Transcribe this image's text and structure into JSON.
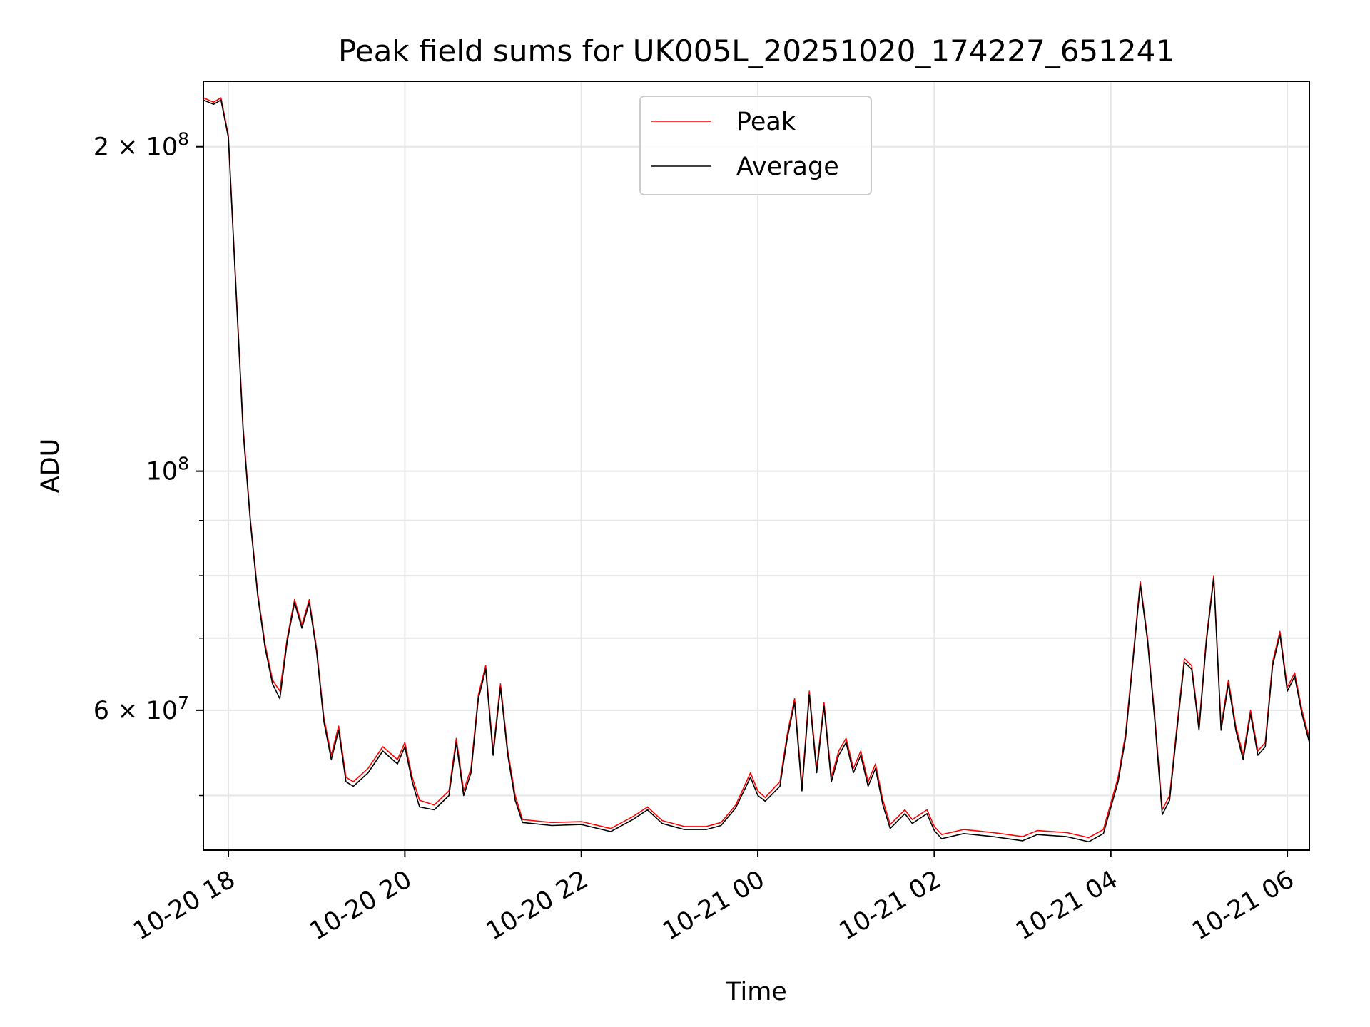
{
  "chart_data": {
    "type": "line",
    "title": "Peak field sums for UK005L_20251020_174227_651241",
    "xlabel": "Time",
    "ylabel": "ADU",
    "y_scale": "log",
    "ylim": [
      44500000,
      230000000
    ],
    "xlim": [
      "2025-10-20 17:43",
      "2025-10-21 06:15"
    ],
    "grid": true,
    "legend_position": "top-center",
    "x_ticks": [
      {
        "t": "2025-10-20 18:00",
        "label": "10-20 18"
      },
      {
        "t": "2025-10-20 20:00",
        "label": "10-20 20"
      },
      {
        "t": "2025-10-20 22:00",
        "label": "10-20 22"
      },
      {
        "t": "2025-10-21 00:00",
        "label": "10-21 00"
      },
      {
        "t": "2025-10-21 02:00",
        "label": "10-21 02"
      },
      {
        "t": "2025-10-21 04:00",
        "label": "10-21 04"
      },
      {
        "t": "2025-10-21 06:00",
        "label": "10-21 06"
      }
    ],
    "y_major_ticks": [
      {
        "v": 200000000,
        "base": "2 × 10",
        "exp": "8"
      },
      {
        "v": 100000000,
        "base": "10",
        "exp": "8"
      },
      {
        "v": 60000000,
        "base": "6 × 10",
        "exp": "7"
      }
    ],
    "y_minor_gridlines": [
      50000000,
      70000000,
      80000000,
      90000000
    ],
    "series": [
      {
        "name": "Peak",
        "color": "#ff0000",
        "points": [
          [
            "2025-10-20 17:43",
            222000000
          ],
          [
            "2025-10-20 17:50",
            220000000
          ],
          [
            "2025-10-20 17:55",
            222000000
          ],
          [
            "2025-10-20 18:00",
            205000000
          ],
          [
            "2025-10-20 18:05",
            150000000
          ],
          [
            "2025-10-20 18:10",
            110000000
          ],
          [
            "2025-10-20 18:15",
            90000000
          ],
          [
            "2025-10-20 18:20",
            77000000
          ],
          [
            "2025-10-20 18:25",
            69000000
          ],
          [
            "2025-10-20 18:30",
            64000000
          ],
          [
            "2025-10-20 18:35",
            62500000
          ],
          [
            "2025-10-20 18:40",
            70000000
          ],
          [
            "2025-10-20 18:45",
            76000000
          ],
          [
            "2025-10-20 18:50",
            72000000
          ],
          [
            "2025-10-20 18:55",
            76000000
          ],
          [
            "2025-10-20 19:00",
            68500000
          ],
          [
            "2025-10-20 19:05",
            59000000
          ],
          [
            "2025-10-20 19:10",
            54500000
          ],
          [
            "2025-10-20 19:15",
            58000000
          ],
          [
            "2025-10-20 19:20",
            52000000
          ],
          [
            "2025-10-20 19:25",
            51500000
          ],
          [
            "2025-10-20 19:35",
            53000000
          ],
          [
            "2025-10-20 19:45",
            55500000
          ],
          [
            "2025-10-20 19:55",
            54000000
          ],
          [
            "2025-10-20 20:00",
            56000000
          ],
          [
            "2025-10-20 20:05",
            52000000
          ],
          [
            "2025-10-20 20:10",
            49500000
          ],
          [
            "2025-10-20 20:20",
            49000000
          ],
          [
            "2025-10-20 20:30",
            50500000
          ],
          [
            "2025-10-20 20:35",
            56500000
          ],
          [
            "2025-10-20 20:40",
            50500000
          ],
          [
            "2025-10-20 20:45",
            53000000
          ],
          [
            "2025-10-20 20:50",
            62000000
          ],
          [
            "2025-10-20 20:55",
            66000000
          ],
          [
            "2025-10-20 21:00",
            55000000
          ],
          [
            "2025-10-20 21:05",
            63500000
          ],
          [
            "2025-10-20 21:10",
            55000000
          ],
          [
            "2025-10-20 21:15",
            50000000
          ],
          [
            "2025-10-20 21:20",
            47500000
          ],
          [
            "2025-10-20 21:40",
            47200000
          ],
          [
            "2025-10-20 22:00",
            47300000
          ],
          [
            "2025-10-20 22:20",
            46600000
          ],
          [
            "2025-10-20 22:35",
            47800000
          ],
          [
            "2025-10-20 22:45",
            48800000
          ],
          [
            "2025-10-20 22:55",
            47400000
          ],
          [
            "2025-10-20 23:10",
            46800000
          ],
          [
            "2025-10-20 23:25",
            46800000
          ],
          [
            "2025-10-20 23:35",
            47200000
          ],
          [
            "2025-10-20 23:45",
            49000000
          ],
          [
            "2025-10-20 23:55",
            52500000
          ],
          [
            "2025-10-21 00:00",
            50500000
          ],
          [
            "2025-10-21 00:05",
            49800000
          ],
          [
            "2025-10-21 00:15",
            51500000
          ],
          [
            "2025-10-21 00:20",
            57000000
          ],
          [
            "2025-10-21 00:25",
            61500000
          ],
          [
            "2025-10-21 00:30",
            51000000
          ],
          [
            "2025-10-21 00:35",
            62500000
          ],
          [
            "2025-10-21 00:40",
            53000000
          ],
          [
            "2025-10-21 00:45",
            61000000
          ],
          [
            "2025-10-21 00:50",
            52000000
          ],
          [
            "2025-10-21 00:55",
            55000000
          ],
          [
            "2025-10-21 01:00",
            56500000
          ],
          [
            "2025-10-21 01:05",
            53000000
          ],
          [
            "2025-10-21 01:10",
            55000000
          ],
          [
            "2025-10-21 01:15",
            51500000
          ],
          [
            "2025-10-21 01:20",
            53500000
          ],
          [
            "2025-10-21 01:25",
            49500000
          ],
          [
            "2025-10-21 01:30",
            47000000
          ],
          [
            "2025-10-21 01:40",
            48500000
          ],
          [
            "2025-10-21 01:45",
            47500000
          ],
          [
            "2025-10-21 01:55",
            48500000
          ],
          [
            "2025-10-21 02:00",
            46800000
          ],
          [
            "2025-10-21 02:05",
            46000000
          ],
          [
            "2025-10-21 02:20",
            46500000
          ],
          [
            "2025-10-21 02:40",
            46200000
          ],
          [
            "2025-10-21 03:00",
            45800000
          ],
          [
            "2025-10-21 03:10",
            46400000
          ],
          [
            "2025-10-21 03:30",
            46200000
          ],
          [
            "2025-10-21 03:45",
            45700000
          ],
          [
            "2025-10-21 03:55",
            46500000
          ],
          [
            "2025-10-21 04:05",
            52000000
          ],
          [
            "2025-10-21 04:10",
            57000000
          ],
          [
            "2025-10-21 04:15",
            67000000
          ],
          [
            "2025-10-21 04:20",
            79000000
          ],
          [
            "2025-10-21 04:25",
            70000000
          ],
          [
            "2025-10-21 04:30",
            59000000
          ],
          [
            "2025-10-21 04:35",
            48500000
          ],
          [
            "2025-10-21 04:40",
            50000000
          ],
          [
            "2025-10-21 04:45",
            58000000
          ],
          [
            "2025-10-21 04:50",
            67000000
          ],
          [
            "2025-10-21 04:55",
            66000000
          ],
          [
            "2025-10-21 05:00",
            58000000
          ],
          [
            "2025-10-21 05:05",
            70000000
          ],
          [
            "2025-10-21 05:10",
            80000000
          ],
          [
            "2025-10-21 05:15",
            58000000
          ],
          [
            "2025-10-21 05:20",
            64000000
          ],
          [
            "2025-10-21 05:25",
            58000000
          ],
          [
            "2025-10-21 05:30",
            54500000
          ],
          [
            "2025-10-21 05:35",
            60000000
          ],
          [
            "2025-10-21 05:40",
            55000000
          ],
          [
            "2025-10-21 05:45",
            56000000
          ],
          [
            "2025-10-21 05:50",
            66500000
          ],
          [
            "2025-10-21 05:55",
            71000000
          ],
          [
            "2025-10-21 06:00",
            63000000
          ],
          [
            "2025-10-21 06:05",
            65000000
          ],
          [
            "2025-10-21 06:10",
            60000000
          ],
          [
            "2025-10-21 06:15",
            56500000
          ]
        ]
      },
      {
        "name": "Average",
        "color": "#000000",
        "points": [
          [
            "2025-10-20 17:43",
            221000000
          ],
          [
            "2025-10-20 17:50",
            219000000
          ],
          [
            "2025-10-20 17:55",
            221000000
          ],
          [
            "2025-10-20 18:00",
            204000000
          ],
          [
            "2025-10-20 18:05",
            149000000
          ],
          [
            "2025-10-20 18:10",
            109000000
          ],
          [
            "2025-10-20 18:15",
            89500000
          ],
          [
            "2025-10-20 18:20",
            76500000
          ],
          [
            "2025-10-20 18:25",
            68500000
          ],
          [
            "2025-10-20 18:30",
            63500000
          ],
          [
            "2025-10-20 18:35",
            61500000
          ],
          [
            "2025-10-20 18:40",
            69500000
          ],
          [
            "2025-10-20 18:45",
            75500000
          ],
          [
            "2025-10-20 18:50",
            71500000
          ],
          [
            "2025-10-20 18:55",
            75500000
          ],
          [
            "2025-10-20 19:00",
            68000000
          ],
          [
            "2025-10-20 19:05",
            58500000
          ],
          [
            "2025-10-20 19:10",
            54000000
          ],
          [
            "2025-10-20 19:15",
            57500000
          ],
          [
            "2025-10-20 19:20",
            51500000
          ],
          [
            "2025-10-20 19:25",
            51000000
          ],
          [
            "2025-10-20 19:35",
            52500000
          ],
          [
            "2025-10-20 19:45",
            55000000
          ],
          [
            "2025-10-20 19:55",
            53500000
          ],
          [
            "2025-10-20 20:00",
            55500000
          ],
          [
            "2025-10-20 20:05",
            51500000
          ],
          [
            "2025-10-20 20:10",
            48800000
          ],
          [
            "2025-10-20 20:20",
            48500000
          ],
          [
            "2025-10-20 20:30",
            50000000
          ],
          [
            "2025-10-20 20:35",
            56000000
          ],
          [
            "2025-10-20 20:40",
            50000000
          ],
          [
            "2025-10-20 20:45",
            52500000
          ],
          [
            "2025-10-20 20:50",
            61500000
          ],
          [
            "2025-10-20 20:55",
            65500000
          ],
          [
            "2025-10-20 21:00",
            54500000
          ],
          [
            "2025-10-20 21:05",
            63000000
          ],
          [
            "2025-10-20 21:10",
            54500000
          ],
          [
            "2025-10-20 21:15",
            49500000
          ],
          [
            "2025-10-20 21:20",
            47200000
          ],
          [
            "2025-10-20 21:40",
            46900000
          ],
          [
            "2025-10-20 22:00",
            47000000
          ],
          [
            "2025-10-20 22:20",
            46300000
          ],
          [
            "2025-10-20 22:35",
            47500000
          ],
          [
            "2025-10-20 22:45",
            48500000
          ],
          [
            "2025-10-20 22:55",
            47100000
          ],
          [
            "2025-10-20 23:10",
            46500000
          ],
          [
            "2025-10-20 23:25",
            46500000
          ],
          [
            "2025-10-20 23:35",
            46900000
          ],
          [
            "2025-10-20 23:45",
            48700000
          ],
          [
            "2025-10-20 23:55",
            52000000
          ],
          [
            "2025-10-21 00:00",
            50000000
          ],
          [
            "2025-10-21 00:05",
            49400000
          ],
          [
            "2025-10-21 00:15",
            51000000
          ],
          [
            "2025-10-21 00:20",
            56500000
          ],
          [
            "2025-10-21 00:25",
            61000000
          ],
          [
            "2025-10-21 00:30",
            50500000
          ],
          [
            "2025-10-21 00:35",
            62000000
          ],
          [
            "2025-10-21 00:40",
            52500000
          ],
          [
            "2025-10-21 00:45",
            60500000
          ],
          [
            "2025-10-21 00:50",
            51500000
          ],
          [
            "2025-10-21 00:55",
            54500000
          ],
          [
            "2025-10-21 01:00",
            56000000
          ],
          [
            "2025-10-21 01:05",
            52500000
          ],
          [
            "2025-10-21 01:10",
            54500000
          ],
          [
            "2025-10-21 01:15",
            51000000
          ],
          [
            "2025-10-21 01:20",
            53000000
          ],
          [
            "2025-10-21 01:25",
            49000000
          ],
          [
            "2025-10-21 01:30",
            46600000
          ],
          [
            "2025-10-21 01:40",
            48100000
          ],
          [
            "2025-10-21 01:45",
            47100000
          ],
          [
            "2025-10-21 01:55",
            48100000
          ],
          [
            "2025-10-21 02:00",
            46400000
          ],
          [
            "2025-10-21 02:05",
            45600000
          ],
          [
            "2025-10-21 02:20",
            46100000
          ],
          [
            "2025-10-21 02:40",
            45800000
          ],
          [
            "2025-10-21 03:00",
            45400000
          ],
          [
            "2025-10-21 03:10",
            46000000
          ],
          [
            "2025-10-21 03:30",
            45800000
          ],
          [
            "2025-10-21 03:45",
            45300000
          ],
          [
            "2025-10-21 03:55",
            46100000
          ],
          [
            "2025-10-21 04:05",
            51500000
          ],
          [
            "2025-10-21 04:10",
            56500000
          ],
          [
            "2025-10-21 04:15",
            66500000
          ],
          [
            "2025-10-21 04:20",
            78500000
          ],
          [
            "2025-10-21 04:25",
            69500000
          ],
          [
            "2025-10-21 04:30",
            58500000
          ],
          [
            "2025-10-21 04:35",
            48000000
          ],
          [
            "2025-10-21 04:40",
            49500000
          ],
          [
            "2025-10-21 04:45",
            57500000
          ],
          [
            "2025-10-21 04:50",
            66500000
          ],
          [
            "2025-10-21 04:55",
            65500000
          ],
          [
            "2025-10-21 05:00",
            57500000
          ],
          [
            "2025-10-21 05:05",
            69500000
          ],
          [
            "2025-10-21 05:10",
            79500000
          ],
          [
            "2025-10-21 05:15",
            57500000
          ],
          [
            "2025-10-21 05:20",
            63500000
          ],
          [
            "2025-10-21 05:25",
            57500000
          ],
          [
            "2025-10-21 05:30",
            54000000
          ],
          [
            "2025-10-21 05:35",
            59500000
          ],
          [
            "2025-10-21 05:40",
            54500000
          ],
          [
            "2025-10-21 05:45",
            55500000
          ],
          [
            "2025-10-21 05:50",
            66000000
          ],
          [
            "2025-10-21 05:55",
            70500000
          ],
          [
            "2025-10-21 06:00",
            62500000
          ],
          [
            "2025-10-21 06:05",
            64500000
          ],
          [
            "2025-10-21 06:10",
            59500000
          ],
          [
            "2025-10-21 06:15",
            56000000
          ]
        ]
      }
    ]
  }
}
